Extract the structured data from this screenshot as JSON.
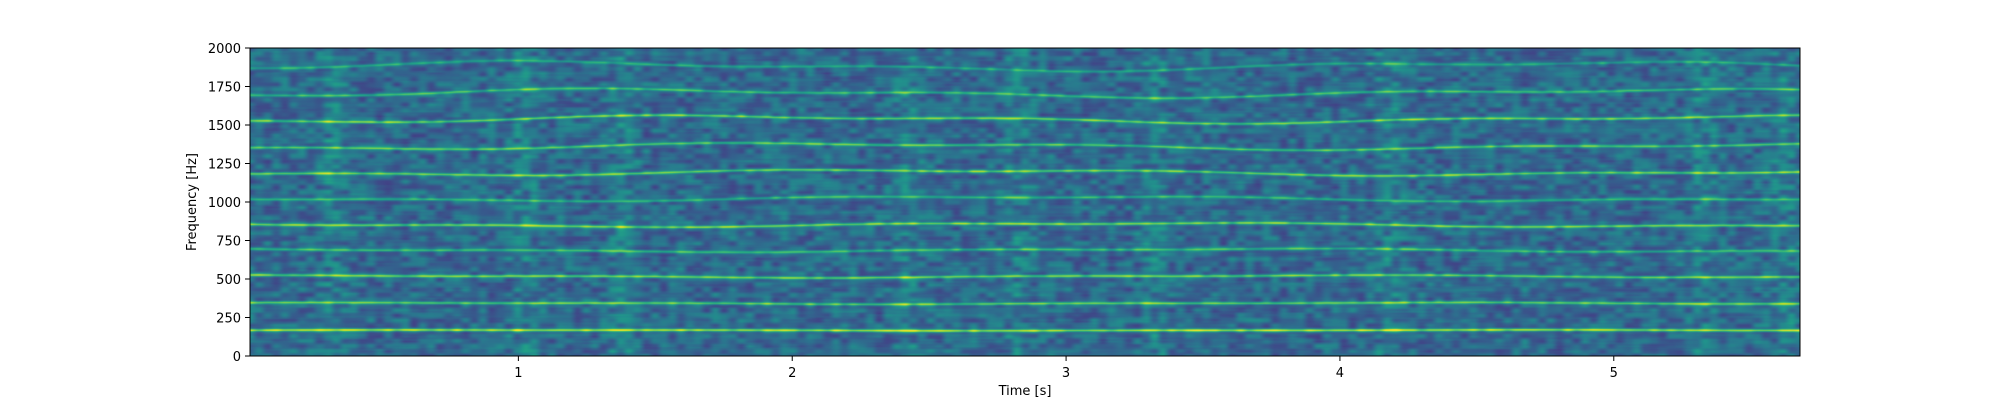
{
  "chart_data": {
    "type": "heatmap",
    "subtype": "spectrogram",
    "colormap": "viridis",
    "xlabel": "Time [s]",
    "ylabel": "Frequency [Hz]",
    "xlim": [
      0.02,
      5.68
    ],
    "ylim": [
      0,
      2000
    ],
    "x_ticks": [
      1,
      2,
      3,
      4,
      5
    ],
    "x_tick_labels": [
      "1",
      "2",
      "3",
      "4",
      "5"
    ],
    "y_ticks": [
      0,
      250,
      500,
      750,
      1000,
      1250,
      1500,
      1750,
      2000
    ],
    "y_tick_labels": [
      "0",
      "250",
      "500",
      "750",
      "1000",
      "1250",
      "1500",
      "1750",
      "2000"
    ],
    "grid": false,
    "harmonics": [
      {
        "frequency_hz": 170,
        "intensity": 1.0
      },
      {
        "frequency_hz": 345,
        "intensity": 0.78
      },
      {
        "frequency_hz": 520,
        "intensity": 0.8
      },
      {
        "frequency_hz": 690,
        "intensity": 0.6
      },
      {
        "frequency_hz": 855,
        "intensity": 0.82
      },
      {
        "frequency_hz": 1025,
        "intensity": 0.55
      },
      {
        "frequency_hz": 1195,
        "intensity": 0.8
      },
      {
        "frequency_hz": 1365,
        "intensity": 0.72
      },
      {
        "frequency_hz": 1540,
        "intensity": 0.8
      },
      {
        "frequency_hz": 1710,
        "intensity": 0.6
      },
      {
        "frequency_hz": 1885,
        "intensity": 0.45
      }
    ],
    "broadband_times_s": [
      0.32,
      1.02,
      1.38,
      2.42,
      2.82,
      3.32,
      4.18,
      5.32,
      5.62
    ]
  }
}
